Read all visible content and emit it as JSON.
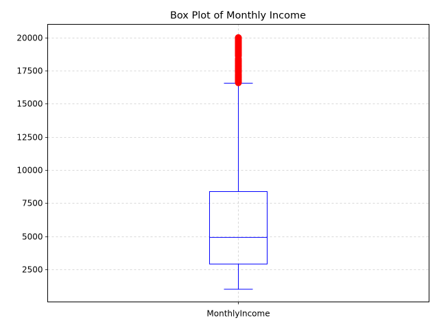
{
  "chart_data": {
    "type": "box",
    "title": "Box Plot of Monthly Income",
    "xlabel": "",
    "ylabel": "",
    "categories": [
      "MonthlyIncome"
    ],
    "ylim": [
      50,
      21000
    ],
    "yticks": [
      2500,
      5000,
      7500,
      10000,
      12500,
      15000,
      17500,
      20000
    ],
    "grid": true,
    "box": {
      "whisker_low": 1009,
      "q1": 2911,
      "median": 4919,
      "q3": 8379,
      "whisker_high": 16555,
      "outliers": [
        16595,
        16659,
        16704,
        16752,
        16799,
        16856,
        16880,
        16959,
        17007,
        17048,
        17068,
        17099,
        17123,
        17159,
        17174,
        17181,
        17328,
        17399,
        17426,
        17444,
        17465,
        17567,
        17584,
        17603,
        17639,
        17650,
        17665,
        17779,
        17856,
        17861,
        17875,
        17924,
        18041,
        18061,
        18172,
        18200,
        18213,
        18265,
        18300,
        18303,
        18430,
        18606,
        18665,
        18711,
        18722,
        18740,
        18789,
        18824,
        18844,
        18880,
        18947,
        19033,
        19045,
        19049,
        19081,
        19094,
        19141,
        19161,
        19189,
        19190,
        19232,
        19237,
        19246,
        19272,
        19287,
        19328,
        19331,
        19392,
        19406,
        19419,
        19431,
        19436,
        19502,
        19513,
        19517,
        19537,
        19545,
        19566,
        19586,
        19613,
        19626,
        19627,
        19636,
        19658,
        19665,
        19701,
        19717,
        19740,
        19833,
        19845,
        19847,
        19859,
        19926,
        19943,
        19973,
        19999
      ]
    },
    "colors": {
      "box": "#0000ff",
      "median": "#0000ff",
      "outlier": "#ff0000",
      "grid": "#cccccc"
    }
  }
}
